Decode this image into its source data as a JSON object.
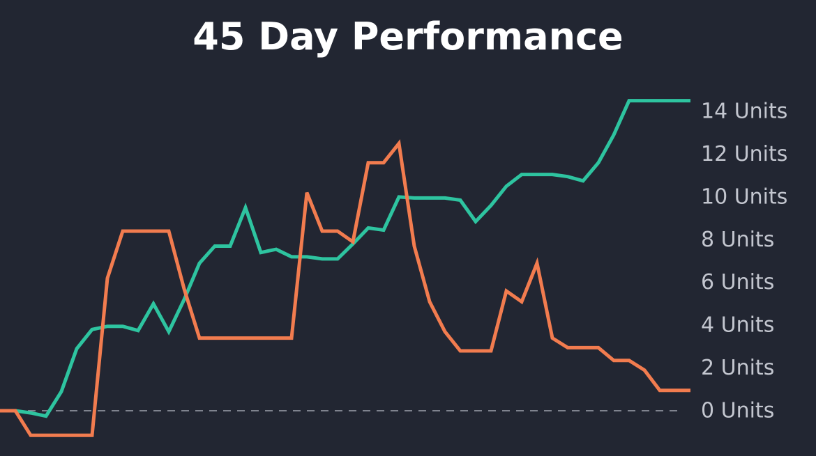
{
  "chart_data": {
    "type": "line",
    "title": "45 Day Performance",
    "xlabel": "",
    "ylabel": "",
    "ylim": [
      -1.2,
      14.6
    ],
    "yticks": [
      0,
      2,
      4,
      6,
      8,
      10,
      12,
      14
    ],
    "ytick_labels": [
      "0 Units",
      "2 Units",
      "4 Units",
      "6 Units",
      "8 Units",
      "10 Units",
      "12 Units",
      "14 Units"
    ],
    "y_axis_position": "right",
    "grid": false,
    "legend": "none",
    "zero_line": "dashed",
    "x": [
      0,
      1,
      2,
      3,
      4,
      5,
      6,
      7,
      8,
      9,
      10,
      11,
      12,
      13,
      14,
      15,
      16,
      17,
      18,
      19,
      20,
      21,
      22,
      23,
      24,
      25,
      26,
      27,
      28,
      29,
      30,
      31,
      32,
      33,
      34,
      35,
      36,
      37,
      38,
      39,
      40,
      41,
      42,
      43,
      44,
      45
    ],
    "series": [
      {
        "color": "#2ec4a0",
        "values": [
          0,
          0,
          -0.1,
          -0.25,
          0.9,
          2.9,
          3.8,
          3.95,
          3.95,
          3.75,
          5.0,
          3.7,
          5.2,
          6.9,
          7.7,
          7.7,
          9.5,
          7.4,
          7.55,
          7.2,
          7.2,
          7.1,
          7.1,
          7.8,
          8.55,
          8.45,
          10.0,
          9.95,
          9.95,
          9.95,
          9.85,
          8.85,
          9.6,
          10.5,
          11.05,
          11.05,
          11.05,
          10.95,
          10.75,
          11.6,
          12.9,
          14.5,
          14.5,
          14.5,
          14.5,
          14.5
        ]
      },
      {
        "color": "#f27c4f",
        "values": [
          0,
          0,
          -1.15,
          -1.15,
          -1.15,
          -1.15,
          -1.15,
          6.2,
          8.4,
          8.4,
          8.4,
          8.4,
          5.7,
          3.4,
          3.4,
          3.4,
          3.4,
          3.4,
          3.4,
          3.4,
          10.2,
          8.4,
          8.4,
          7.9,
          11.6,
          11.6,
          12.5,
          7.7,
          5.1,
          3.7,
          2.8,
          2.8,
          2.8,
          5.6,
          5.1,
          6.9,
          3.4,
          2.95,
          2.95,
          2.95,
          2.35,
          2.35,
          1.9,
          0.95,
          0.95,
          0.95
        ]
      }
    ]
  }
}
